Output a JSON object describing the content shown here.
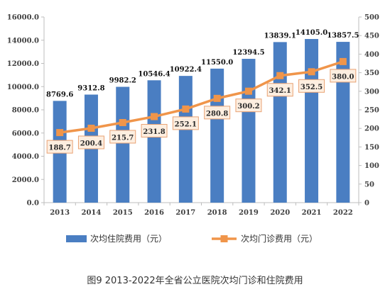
{
  "caption": "图9  2013-2022年全省公立医院次均门诊和住院费用",
  "colors": {
    "bar": "#4a7ec2",
    "line": "#f0954a",
    "label_box_fill": "#fdeee0",
    "label_box_stroke": "#e9a273",
    "axis": "#bdbdbd",
    "text": "#404040"
  },
  "chart_data": {
    "type": "bar",
    "categories": [
      "2013",
      "2014",
      "2015",
      "2016",
      "2017",
      "2018",
      "2019",
      "2020",
      "2021",
      "2022"
    ],
    "series": [
      {
        "name": "次均住院费用（元）",
        "type": "bar",
        "axis": "left",
        "values": [
          8769.6,
          9312.8,
          9982.2,
          10546.4,
          10922.4,
          11550.0,
          12394.5,
          13839.1,
          14105.0,
          13857.5
        ],
        "labels": [
          "8769.6",
          "9312.8",
          "9982.2",
          "10546.4",
          "10922.4",
          "11550.0",
          "12394.5",
          "13839.1",
          "14105.0",
          "13857.5"
        ]
      },
      {
        "name": "次均门诊费用（元）",
        "type": "line",
        "axis": "right",
        "values": [
          188.7,
          200.4,
          215.7,
          231.8,
          252.1,
          280.8,
          300.2,
          342.1,
          352.5,
          380.0
        ],
        "labels": [
          "188.7",
          "200.4",
          "215.7",
          "231.8",
          "252.1",
          "280.8",
          "300.2",
          "342.1",
          "352.5",
          "380.0"
        ]
      }
    ],
    "y_left": {
      "lim": [
        0,
        16000
      ],
      "ticks": [
        0,
        2000,
        4000,
        6000,
        8000,
        10000,
        12000,
        14000,
        16000
      ],
      "tick_labels": [
        "0.0",
        "2000.0",
        "4000.0",
        "6000.0",
        "8000.0",
        "10000.0",
        "12000.0",
        "14000.0",
        "16000.0"
      ]
    },
    "y_right": {
      "lim": [
        0,
        500
      ],
      "ticks": [
        0,
        50,
        100,
        150,
        200,
        250,
        300,
        350,
        400,
        450,
        500
      ],
      "tick_labels": [
        "0",
        "50",
        "100",
        "150",
        "200",
        "250",
        "300",
        "350",
        "400",
        "450",
        "500"
      ]
    },
    "grid": false,
    "legend_position": "bottom"
  }
}
